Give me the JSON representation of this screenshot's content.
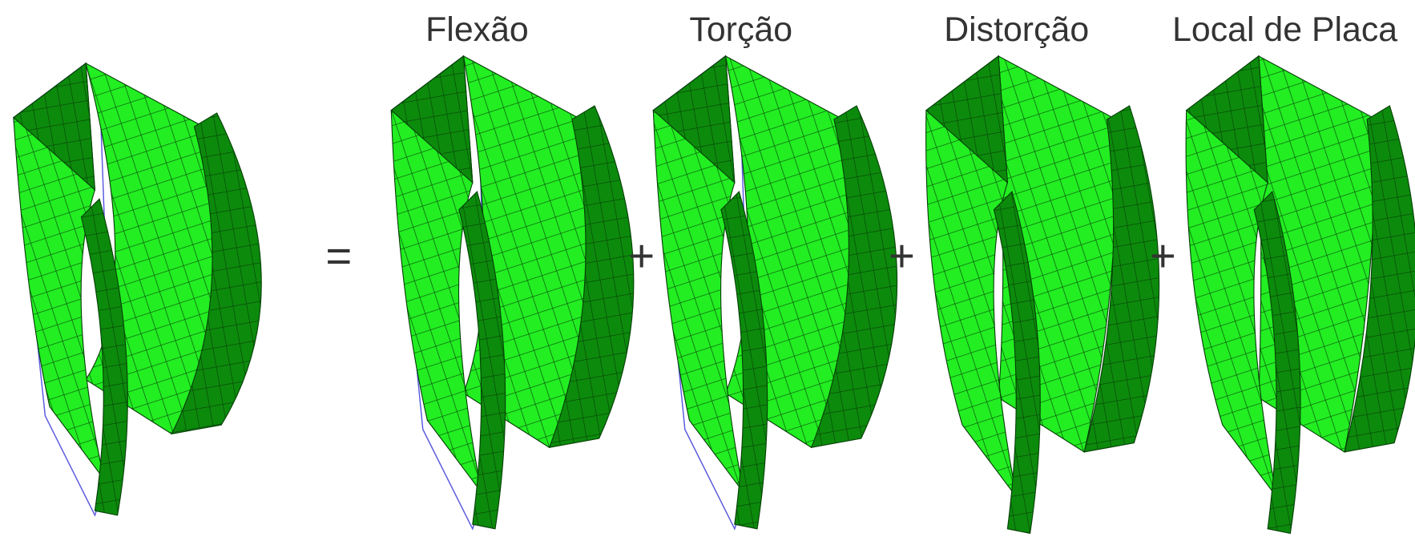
{
  "labels": [
    "Flexão",
    "Torção",
    "Distorção",
    "Local de Placa"
  ],
  "operators": [
    "=",
    "+",
    "+",
    "+"
  ]
}
